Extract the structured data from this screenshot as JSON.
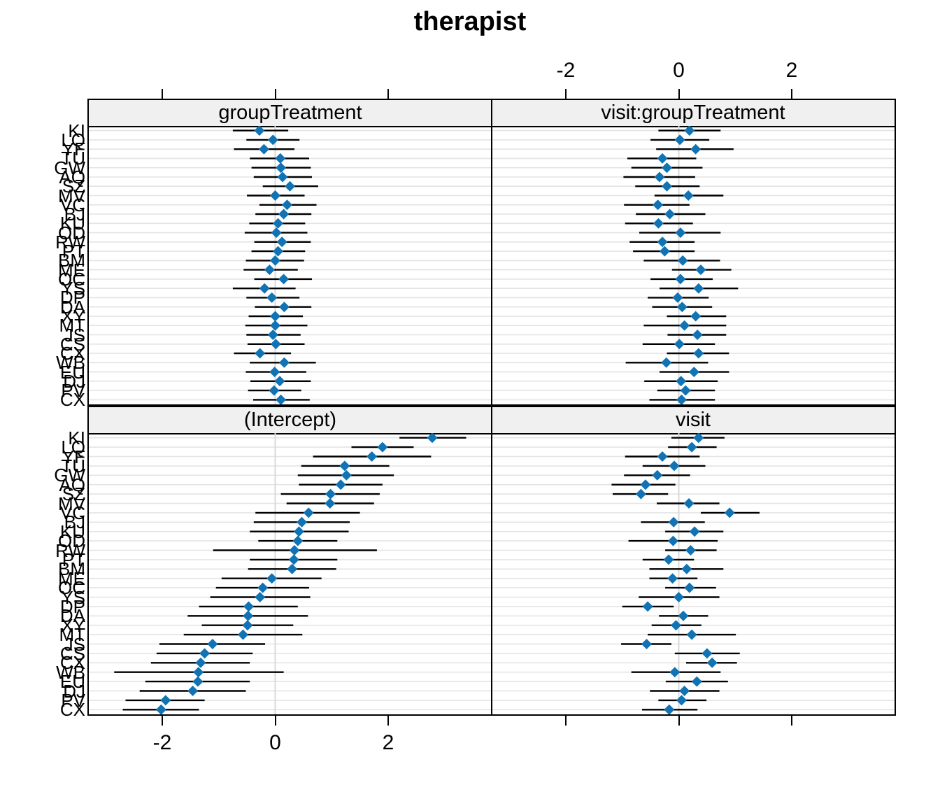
{
  "title": "therapist",
  "chart_data": {
    "type": "dotplot",
    "title": "therapist",
    "description": "Lattice caterpillar dotplot of random effects by therapist, 4 panels with point estimates and interval whiskers",
    "x_range": [
      -3.3,
      3.82
    ],
    "x_ticks": [
      -2,
      0,
      2
    ],
    "x_tick_labels": [
      "-2",
      "0",
      "2"
    ],
    "grid": "horizontal-per-row",
    "legend": "none",
    "colors": {
      "point": "#1173b4",
      "whisker": "#000000",
      "grid": "#e4e4e4",
      "zero_line": "#d9d9d9",
      "strip_bg": "#f0f0f0",
      "border": "#000000"
    },
    "levels": [
      "KI",
      "LQ",
      "YF",
      "TU",
      "GW",
      "AQ",
      "SZ",
      "MV",
      "VC",
      "BJ",
      "KU",
      "OD",
      "RW",
      "PT",
      "BM",
      "ME",
      "OC",
      "YS",
      "DP",
      "DA",
      "XY",
      "MT",
      "JS",
      "CS",
      "CX",
      "WB",
      "EU",
      "DJ",
      "PV",
      "CX"
    ],
    "panels": [
      {
        "name": "groupTreatment",
        "position": "top-left",
        "est": [
          -0.28,
          -0.04,
          -0.2,
          0.09,
          0.1,
          0.13,
          0.26,
          0.0,
          0.21,
          0.15,
          0.05,
          0.02,
          0.12,
          0.05,
          0.0,
          -0.1,
          0.15,
          -0.19,
          -0.06,
          0.16,
          0.0,
          0.0,
          -0.04,
          0.01,
          -0.27,
          0.16,
          -0.01,
          0.08,
          -0.02,
          0.1
        ],
        "lo": [
          -0.75,
          -0.51,
          -0.73,
          -0.45,
          -0.42,
          -0.38,
          -0.22,
          -0.5,
          -0.28,
          -0.35,
          -0.46,
          -0.54,
          -0.37,
          -0.42,
          -0.52,
          -0.56,
          -0.37,
          -0.75,
          -0.51,
          -0.36,
          -0.47,
          -0.53,
          -0.51,
          -0.49,
          -0.73,
          -0.45,
          -0.52,
          -0.44,
          -0.48,
          -0.39
        ],
        "hi": [
          0.23,
          0.43,
          0.34,
          0.6,
          0.63,
          0.65,
          0.76,
          0.52,
          0.73,
          0.64,
          0.53,
          0.57,
          0.63,
          0.53,
          0.51,
          0.4,
          0.65,
          0.36,
          0.43,
          0.64,
          0.49,
          0.57,
          0.45,
          0.52,
          0.28,
          0.72,
          0.55,
          0.63,
          0.46,
          0.61
        ]
      },
      {
        "name": "visit:groupTreatment",
        "position": "top-right",
        "est": [
          0.19,
          0.02,
          0.3,
          -0.29,
          -0.21,
          -0.34,
          -0.21,
          0.17,
          -0.37,
          -0.16,
          -0.36,
          0.03,
          -0.29,
          -0.25,
          0.07,
          0.39,
          0.03,
          0.35,
          -0.02,
          0.06,
          0.3,
          0.1,
          0.33,
          0.01,
          0.35,
          -0.22,
          0.27,
          0.04,
          0.12,
          0.05
        ],
        "lo": [
          -0.36,
          -0.5,
          -0.4,
          -0.91,
          -0.84,
          -0.98,
          -0.77,
          -0.43,
          -0.97,
          -0.76,
          -0.95,
          -0.7,
          -0.87,
          -0.81,
          -0.62,
          -0.12,
          -0.5,
          -0.34,
          -0.55,
          -0.47,
          -0.21,
          -0.62,
          -0.2,
          -0.64,
          -0.21,
          -0.94,
          -0.34,
          -0.61,
          -0.38,
          -0.52
        ],
        "hi": [
          0.74,
          0.54,
          0.97,
          0.31,
          0.42,
          0.29,
          0.37,
          0.79,
          0.19,
          0.47,
          0.25,
          0.74,
          0.28,
          0.28,
          0.73,
          0.93,
          0.6,
          1.05,
          0.53,
          0.59,
          0.84,
          0.84,
          0.84,
          0.64,
          0.89,
          0.52,
          0.89,
          0.69,
          0.64,
          0.64
        ]
      },
      {
        "name": "(Intercept)",
        "position": "bottom-left",
        "est": [
          2.78,
          1.9,
          1.71,
          1.23,
          1.26,
          1.16,
          0.98,
          0.97,
          0.59,
          0.47,
          0.42,
          0.4,
          0.34,
          0.33,
          0.3,
          -0.06,
          -0.22,
          -0.27,
          -0.47,
          -0.48,
          -0.49,
          -0.57,
          -1.11,
          -1.25,
          -1.32,
          -1.36,
          -1.37,
          -1.46,
          -1.94,
          -2.02
        ],
        "lo": [
          2.2,
          1.35,
          0.67,
          0.46,
          0.4,
          0.42,
          0.1,
          0.2,
          -0.35,
          -0.38,
          -0.45,
          -0.3,
          -1.1,
          -0.45,
          -0.48,
          -0.95,
          -1.05,
          -1.15,
          -1.35,
          -1.55,
          -1.3,
          -1.62,
          -2.05,
          -2.1,
          -2.2,
          -2.85,
          -2.3,
          -2.4,
          -2.65,
          -2.7
        ],
        "hi": [
          3.38,
          2.45,
          2.76,
          2.02,
          2.1,
          1.9,
          1.85,
          1.75,
          1.5,
          1.32,
          1.3,
          1.1,
          1.8,
          1.1,
          1.08,
          0.82,
          0.6,
          0.62,
          0.4,
          0.58,
          0.32,
          0.48,
          -0.18,
          -0.4,
          -0.45,
          0.15,
          -0.45,
          -0.52,
          -1.25,
          -1.35
        ]
      },
      {
        "name": "visit",
        "position": "bottom-right",
        "est": [
          0.35,
          0.23,
          -0.29,
          -0.08,
          -0.38,
          -0.59,
          -0.67,
          0.18,
          0.9,
          -0.09,
          0.28,
          -0.1,
          0.21,
          -0.18,
          0.14,
          -0.11,
          0.19,
          0.0,
          -0.55,
          0.08,
          -0.05,
          0.23,
          -0.57,
          0.5,
          0.59,
          -0.07,
          0.32,
          0.1,
          0.05,
          -0.17
        ],
        "lo": [
          -0.13,
          -0.19,
          -0.95,
          -0.64,
          -0.97,
          -1.19,
          -1.17,
          -0.39,
          0.39,
          -0.67,
          -0.24,
          -0.89,
          -0.24,
          -0.64,
          -0.52,
          -0.52,
          -0.24,
          -0.71,
          -1.0,
          -0.35,
          -0.48,
          -0.55,
          -1.02,
          -0.07,
          0.13,
          -0.84,
          -0.23,
          -0.51,
          -0.36,
          -0.65
        ],
        "hi": [
          0.81,
          0.67,
          0.37,
          0.47,
          0.2,
          -0.06,
          -0.19,
          0.72,
          1.43,
          0.46,
          0.79,
          0.69,
          0.67,
          0.27,
          0.79,
          0.33,
          0.66,
          0.72,
          -0.09,
          0.52,
          0.4,
          1.01,
          -0.13,
          1.08,
          1.03,
          0.74,
          0.87,
          0.72,
          0.49,
          0.33
        ]
      }
    ],
    "axis_layout": {
      "top_axis_labeled_panel": "right",
      "bottom_axis_labeled_panel": "left"
    }
  }
}
